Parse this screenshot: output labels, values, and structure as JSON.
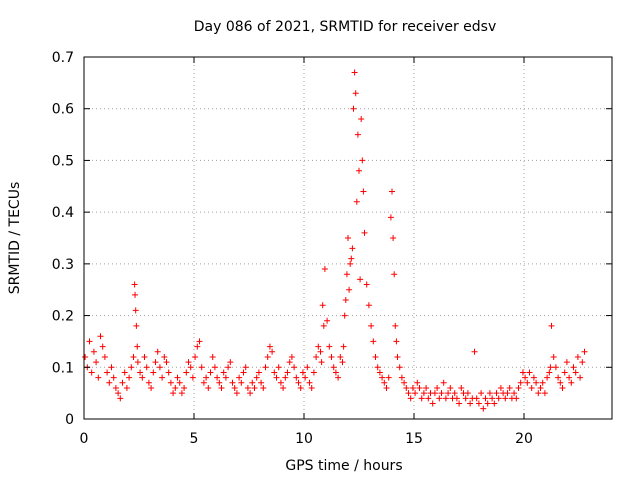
{
  "chart_data": {
    "type": "scatter",
    "title": "Day 086 of 2021, SRMTID for receiver edsv",
    "xlabel": "GPS time / hours",
    "ylabel": "SRMTID / TECUs",
    "xlim": [
      0,
      24
    ],
    "ylim": [
      0,
      0.7
    ],
    "xticks": [
      0,
      5,
      10,
      15,
      20
    ],
    "xtick_labels": [
      "0",
      "5",
      "10",
      "15",
      "20"
    ],
    "yticks": [
      0,
      0.1,
      0.2,
      0.3,
      0.4,
      0.5,
      0.6,
      0.7
    ],
    "ytick_labels": [
      "0",
      "0.1",
      "0.2",
      "0.3",
      "0.4",
      "0.5",
      "0.6",
      "0.7"
    ],
    "grid": true,
    "marker": "+",
    "series_color": "#ff0000",
    "series": [
      {
        "name": "SRMTID",
        "x": [
          0.05,
          0.15,
          0.25,
          0.35,
          0.45,
          0.55,
          0.65,
          0.75,
          0.85,
          0.95,
          1.05,
          1.15,
          1.25,
          1.35,
          1.45,
          1.55,
          1.65,
          1.75,
          1.85,
          1.95,
          2.05,
          2.15,
          2.25,
          2.3,
          2.32,
          2.35,
          2.38,
          2.42,
          2.45,
          2.55,
          2.65,
          2.75,
          2.85,
          2.95,
          3.05,
          3.15,
          3.25,
          3.35,
          3.45,
          3.55,
          3.65,
          3.75,
          3.85,
          3.95,
          4.05,
          4.15,
          4.25,
          4.35,
          4.45,
          4.55,
          4.65,
          4.75,
          4.85,
          4.95,
          5.05,
          5.15,
          5.25,
          5.35,
          5.45,
          5.55,
          5.65,
          5.75,
          5.85,
          5.95,
          6.05,
          6.15,
          6.25,
          6.35,
          6.45,
          6.55,
          6.65,
          6.75,
          6.85,
          6.95,
          7.05,
          7.15,
          7.25,
          7.35,
          7.45,
          7.55,
          7.65,
          7.75,
          7.85,
          7.95,
          8.05,
          8.15,
          8.25,
          8.35,
          8.45,
          8.55,
          8.65,
          8.75,
          8.85,
          8.95,
          9.05,
          9.15,
          9.25,
          9.35,
          9.45,
          9.55,
          9.65,
          9.75,
          9.85,
          9.95,
          10.05,
          10.15,
          10.25,
          10.35,
          10.45,
          10.55,
          10.65,
          10.75,
          10.8,
          10.85,
          10.9,
          10.95,
          11.05,
          11.15,
          11.25,
          11.35,
          11.45,
          11.55,
          11.65,
          11.75,
          11.8,
          11.85,
          11.9,
          11.95,
          12.0,
          12.05,
          12.1,
          12.15,
          12.2,
          12.25,
          12.3,
          12.35,
          12.4,
          12.45,
          12.5,
          12.55,
          12.6,
          12.65,
          12.7,
          12.75,
          12.85,
          12.95,
          13.05,
          13.15,
          13.25,
          13.35,
          13.45,
          13.55,
          13.65,
          13.75,
          13.85,
          13.95,
          14.0,
          14.05,
          14.1,
          14.15,
          14.2,
          14.25,
          14.35,
          14.45,
          14.55,
          14.65,
          14.75,
          14.85,
          14.95,
          15.05,
          15.15,
          15.25,
          15.35,
          15.45,
          15.55,
          15.65,
          15.75,
          15.85,
          15.95,
          16.05,
          16.15,
          16.25,
          16.35,
          16.45,
          16.55,
          16.65,
          16.75,
          16.85,
          16.95,
          17.05,
          17.15,
          17.25,
          17.35,
          17.45,
          17.55,
          17.65,
          17.75,
          17.85,
          17.95,
          18.05,
          18.15,
          18.25,
          18.35,
          18.45,
          18.55,
          18.65,
          18.75,
          18.85,
          18.95,
          19.05,
          19.15,
          19.25,
          19.35,
          19.45,
          19.55,
          19.65,
          19.75,
          19.85,
          19.95,
          20.05,
          20.15,
          20.25,
          20.35,
          20.45,
          20.55,
          20.65,
          20.75,
          20.85,
          20.95,
          21.05,
          21.15,
          21.2,
          21.25,
          21.35,
          21.45,
          21.55,
          21.65,
          21.75,
          21.85,
          21.95,
          22.05,
          22.15,
          22.25,
          22.35,
          22.45,
          22.55,
          22.65,
          22.75
        ],
        "y": [
          0.12,
          0.1,
          0.15,
          0.09,
          0.13,
          0.11,
          0.08,
          0.16,
          0.14,
          0.12,
          0.09,
          0.07,
          0.1,
          0.08,
          0.06,
          0.05,
          0.04,
          0.07,
          0.09,
          0.06,
          0.08,
          0.1,
          0.12,
          0.26,
          0.24,
          0.21,
          0.18,
          0.14,
          0.11,
          0.09,
          0.08,
          0.12,
          0.1,
          0.07,
          0.06,
          0.09,
          0.11,
          0.13,
          0.1,
          0.08,
          0.12,
          0.11,
          0.09,
          0.07,
          0.05,
          0.06,
          0.08,
          0.07,
          0.05,
          0.06,
          0.09,
          0.11,
          0.1,
          0.08,
          0.12,
          0.14,
          0.15,
          0.1,
          0.07,
          0.08,
          0.06,
          0.09,
          0.12,
          0.1,
          0.08,
          0.07,
          0.06,
          0.09,
          0.08,
          0.1,
          0.11,
          0.07,
          0.06,
          0.05,
          0.08,
          0.07,
          0.09,
          0.1,
          0.06,
          0.05,
          0.07,
          0.06,
          0.08,
          0.09,
          0.07,
          0.06,
          0.1,
          0.12,
          0.14,
          0.13,
          0.09,
          0.08,
          0.1,
          0.07,
          0.06,
          0.08,
          0.09,
          0.11,
          0.12,
          0.1,
          0.08,
          0.07,
          0.06,
          0.09,
          0.08,
          0.1,
          0.07,
          0.06,
          0.09,
          0.12,
          0.14,
          0.13,
          0.11,
          0.22,
          0.18,
          0.29,
          0.19,
          0.14,
          0.12,
          0.1,
          0.09,
          0.08,
          0.12,
          0.11,
          0.14,
          0.2,
          0.23,
          0.28,
          0.35,
          0.25,
          0.3,
          0.31,
          0.33,
          0.6,
          0.67,
          0.63,
          0.42,
          0.55,
          0.48,
          0.27,
          0.58,
          0.5,
          0.44,
          0.36,
          0.26,
          0.22,
          0.18,
          0.15,
          0.12,
          0.1,
          0.09,
          0.08,
          0.07,
          0.06,
          0.08,
          0.39,
          0.44,
          0.35,
          0.28,
          0.18,
          0.15,
          0.12,
          0.1,
          0.08,
          0.07,
          0.06,
          0.05,
          0.04,
          0.06,
          0.05,
          0.07,
          0.06,
          0.04,
          0.05,
          0.06,
          0.04,
          0.05,
          0.03,
          0.05,
          0.06,
          0.04,
          0.05,
          0.07,
          0.04,
          0.05,
          0.06,
          0.04,
          0.05,
          0.04,
          0.03,
          0.06,
          0.05,
          0.04,
          0.05,
          0.03,
          0.04,
          0.13,
          0.04,
          0.03,
          0.05,
          0.02,
          0.04,
          0.03,
          0.05,
          0.04,
          0.03,
          0.05,
          0.04,
          0.06,
          0.05,
          0.04,
          0.05,
          0.06,
          0.04,
          0.05,
          0.04,
          0.06,
          0.07,
          0.09,
          0.08,
          0.07,
          0.09,
          0.06,
          0.08,
          0.07,
          0.05,
          0.06,
          0.07,
          0.05,
          0.08,
          0.09,
          0.1,
          0.18,
          0.12,
          0.1,
          0.08,
          0.07,
          0.06,
          0.09,
          0.11,
          0.08,
          0.07,
          0.1,
          0.09,
          0.12,
          0.08,
          0.11,
          0.13
        ]
      }
    ]
  }
}
